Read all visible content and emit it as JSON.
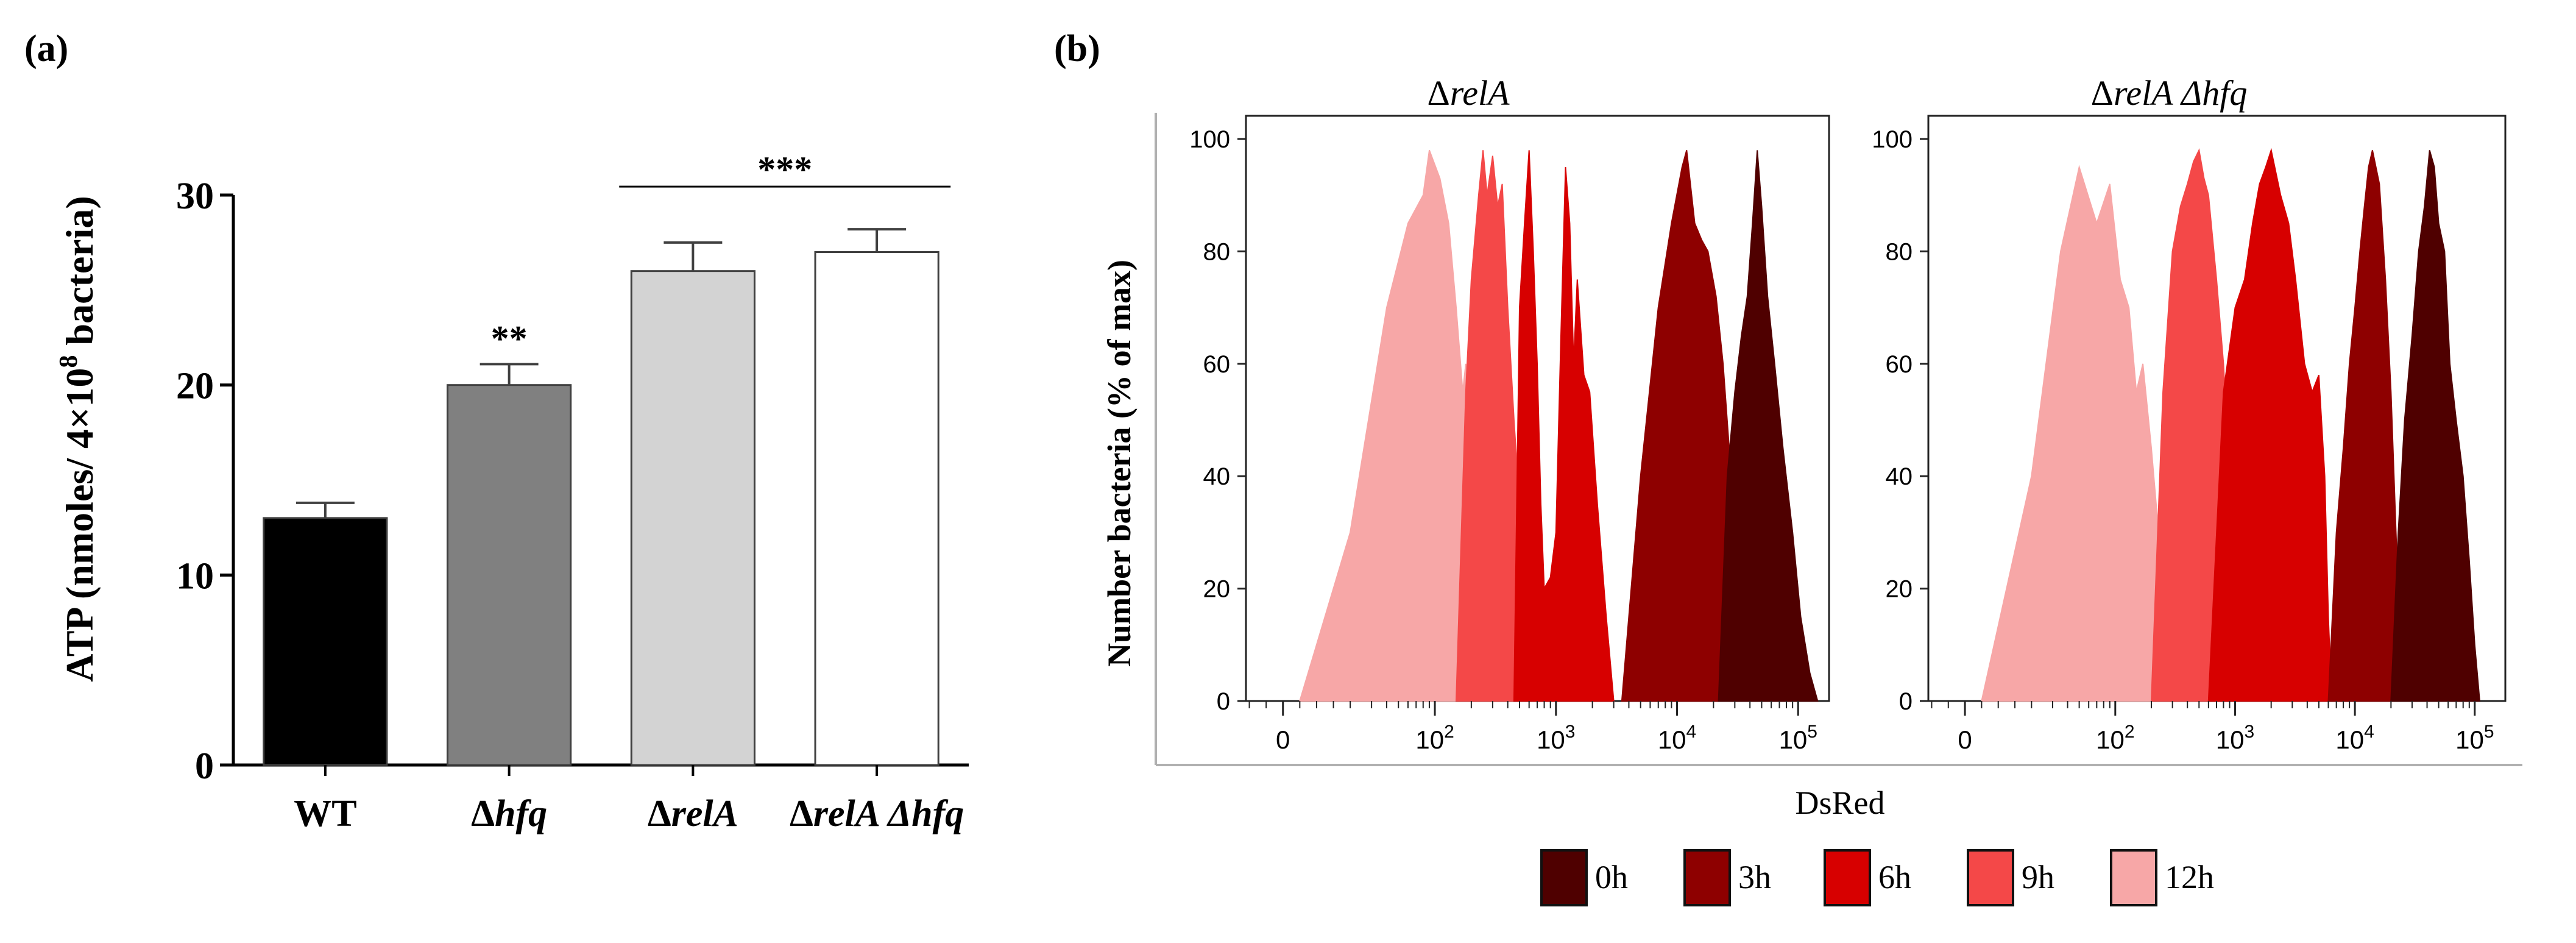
{
  "panel_a": {
    "label": "(a)",
    "ylabel_prefix": "ATP (nmoles/ 4×10",
    "ylabel_sup": "8",
    "ylabel_suffix": " bacteria)"
  },
  "panel_b": {
    "label": "(b)",
    "xlabel": "DsRed",
    "ylabel": "Number bacteria (% of max)",
    "titles": [
      {
        "prefix": "Δ",
        "italic": "relA"
      },
      {
        "prefix": "Δ",
        "italic": "relA Δhfq"
      }
    ]
  },
  "chart_data": [
    {
      "type": "bar",
      "title": "",
      "ylabel": "ATP (nmoles/ 4×10^8 bacteria)",
      "ylim": [
        0,
        30
      ],
      "yticks": [
        0,
        10,
        20,
        30
      ],
      "categories": [
        "WT",
        "Δhfq",
        "ΔrelA",
        "ΔrelA Δhfq"
      ],
      "category_parts": [
        {
          "plain": "WT",
          "italic": ""
        },
        {
          "plain": "Δ",
          "italic": "hfq"
        },
        {
          "plain": "Δ",
          "italic": "relA"
        },
        {
          "plain": "Δ",
          "italic": "relA Δhfq"
        }
      ],
      "values": [
        13,
        20,
        26,
        27
      ],
      "errors": [
        0.8,
        1.1,
        1.5,
        1.2
      ],
      "bar_colors": [
        "#000000",
        "#808080",
        "#d3d3d3",
        "#ffffff"
      ],
      "annotations": [
        {
          "text": "**",
          "target": "Δhfq"
        },
        {
          "text": "***",
          "target": "ΔrelA / ΔrelA Δhfq"
        }
      ]
    },
    {
      "type": "area",
      "xlabel": "DsRed",
      "ylabel": "Number bacteria (% of max)",
      "ylim": [
        0,
        100
      ],
      "yticks": [
        "0",
        "20",
        "40",
        "60",
        "80",
        "100"
      ],
      "xticks": [
        {
          "value": 0,
          "base": "0",
          "exp": ""
        },
        {
          "value": 100,
          "base": "10",
          "exp": "2"
        },
        {
          "value": 1000,
          "base": "10",
          "exp": "3"
        },
        {
          "value": 10000,
          "base": "10",
          "exp": "4"
        },
        {
          "value": 100000,
          "base": "10",
          "exp": "5"
        }
      ],
      "legend": [
        {
          "label": "0h",
          "color": "#4f0000"
        },
        {
          "label": "3h",
          "color": "#8e0000"
        },
        {
          "label": "6h",
          "color": "#d70000"
        },
        {
          "label": "9h",
          "color": "#f44848"
        },
        {
          "label": "12h",
          "color": "#f7a7a7"
        }
      ],
      "panels": [
        {
          "title": "ΔrelA",
          "series": [
            {
              "name": "12h",
              "x": [
                5,
                20,
                40,
                60,
                80,
                90,
                110,
                130,
                150,
                170,
                180,
                200,
                220,
                250,
                280,
                320,
                360,
                400,
                500,
                600,
                700,
                800,
                1000,
                1200
              ],
              "y": [
                0,
                30,
                70,
                85,
                90,
                98,
                93,
                85,
                70,
                55,
                60,
                40,
                25,
                18,
                10,
                6,
                4,
                3,
                4,
                2,
                1,
                1,
                0.5,
                0
              ]
            },
            {
              "name": "9h",
              "x": [
                150,
                180,
                200,
                230,
                250,
                270,
                300,
                330,
                360,
                400,
                450,
                500,
                600,
                700,
                800,
                900,
                1000,
                1200,
                1500,
                2000,
                2500,
                3000
              ],
              "y": [
                0,
                55,
                75,
                90,
                98,
                90,
                97,
                88,
                92,
                70,
                50,
                35,
                25,
                22,
                18,
                17,
                20,
                15,
                10,
                5,
                2,
                0
              ]
            },
            {
              "name": "6h",
              "x": [
                450,
                500,
                550,
                600,
                650,
                700,
                750,
                800,
                900,
                1000,
                1100,
                1200,
                1300,
                1400,
                1500,
                1700,
                1900,
                2200,
                2600,
                3000
              ],
              "y": [
                0,
                70,
                85,
                98,
                80,
                60,
                35,
                20,
                22,
                30,
                65,
                95,
                85,
                60,
                75,
                58,
                55,
                35,
                15,
                0
              ]
            },
            {
              "name": "3h",
              "x": [
                3500,
                5000,
                7000,
                9000,
                11000,
                12000,
                14000,
                16000,
                18000,
                21000,
                24000,
                28000,
                32000,
                37000
              ],
              "y": [
                0,
                40,
                70,
                85,
                95,
                98,
                85,
                82,
                80,
                72,
                60,
                40,
                20,
                0
              ]
            },
            {
              "name": "0h",
              "x": [
                22000,
                26000,
                30000,
                34000,
                38000,
                42000,
                46000,
                50000,
                56000,
                64000,
                75000,
                90000,
                105000,
                125000,
                145000
              ],
              "y": [
                0,
                40,
                55,
                65,
                72,
                85,
                98,
                88,
                72,
                60,
                45,
                30,
                15,
                5,
                0
              ]
            }
          ]
        },
        {
          "title": "ΔrelA Δhfq",
          "series": [
            {
              "name": "12h",
              "x": [
                5,
                20,
                35,
                50,
                70,
                90,
                110,
                130,
                150,
                170,
                200,
                230,
                250,
                280,
                300,
                320
              ],
              "y": [
                0,
                40,
                80,
                95,
                85,
                92,
                75,
                70,
                55,
                60,
                45,
                30,
                22,
                18,
                10,
                0
              ]
            },
            {
              "name": "9h",
              "x": [
                200,
                250,
                300,
                350,
                400,
                450,
                500,
                550,
                600,
                700,
                800,
                900,
                1000,
                1100,
                1200,
                1300,
                1400
              ],
              "y": [
                0,
                55,
                80,
                88,
                92,
                96,
                98,
                93,
                90,
                75,
                60,
                40,
                25,
                15,
                8,
                3,
                0
              ]
            },
            {
              "name": "6h",
              "x": [
                600,
                800,
                1000,
                1200,
                1400,
                1600,
                1800,
                2000,
                2400,
                2800,
                3200,
                3800,
                4400,
                5000,
                5600,
                6000,
                6400
              ],
              "y": [
                0,
                55,
                70,
                75,
                85,
                92,
                95,
                98,
                90,
                85,
                75,
                60,
                55,
                58,
                40,
                15,
                0
              ]
            },
            {
              "name": "3h",
              "x": [
                6000,
                7000,
                8000,
                9000,
                10000,
                11000,
                12000,
                13000,
                14000,
                16000,
                18000,
                20000,
                22000,
                25000
              ],
              "y": [
                0,
                30,
                45,
                60,
                70,
                80,
                88,
                95,
                98,
                92,
                75,
                55,
                30,
                0
              ]
            },
            {
              "name": "0h",
              "x": [
                20000,
                23000,
                26000,
                30000,
                34000,
                38000,
                42000,
                46000,
                50000,
                56000,
                62000,
                70000,
                80000,
                90000,
                100000,
                110000
              ],
              "y": [
                0,
                30,
                50,
                65,
                80,
                88,
                98,
                95,
                85,
                80,
                60,
                50,
                40,
                25,
                10,
                0
              ]
            }
          ]
        }
      ]
    }
  ]
}
